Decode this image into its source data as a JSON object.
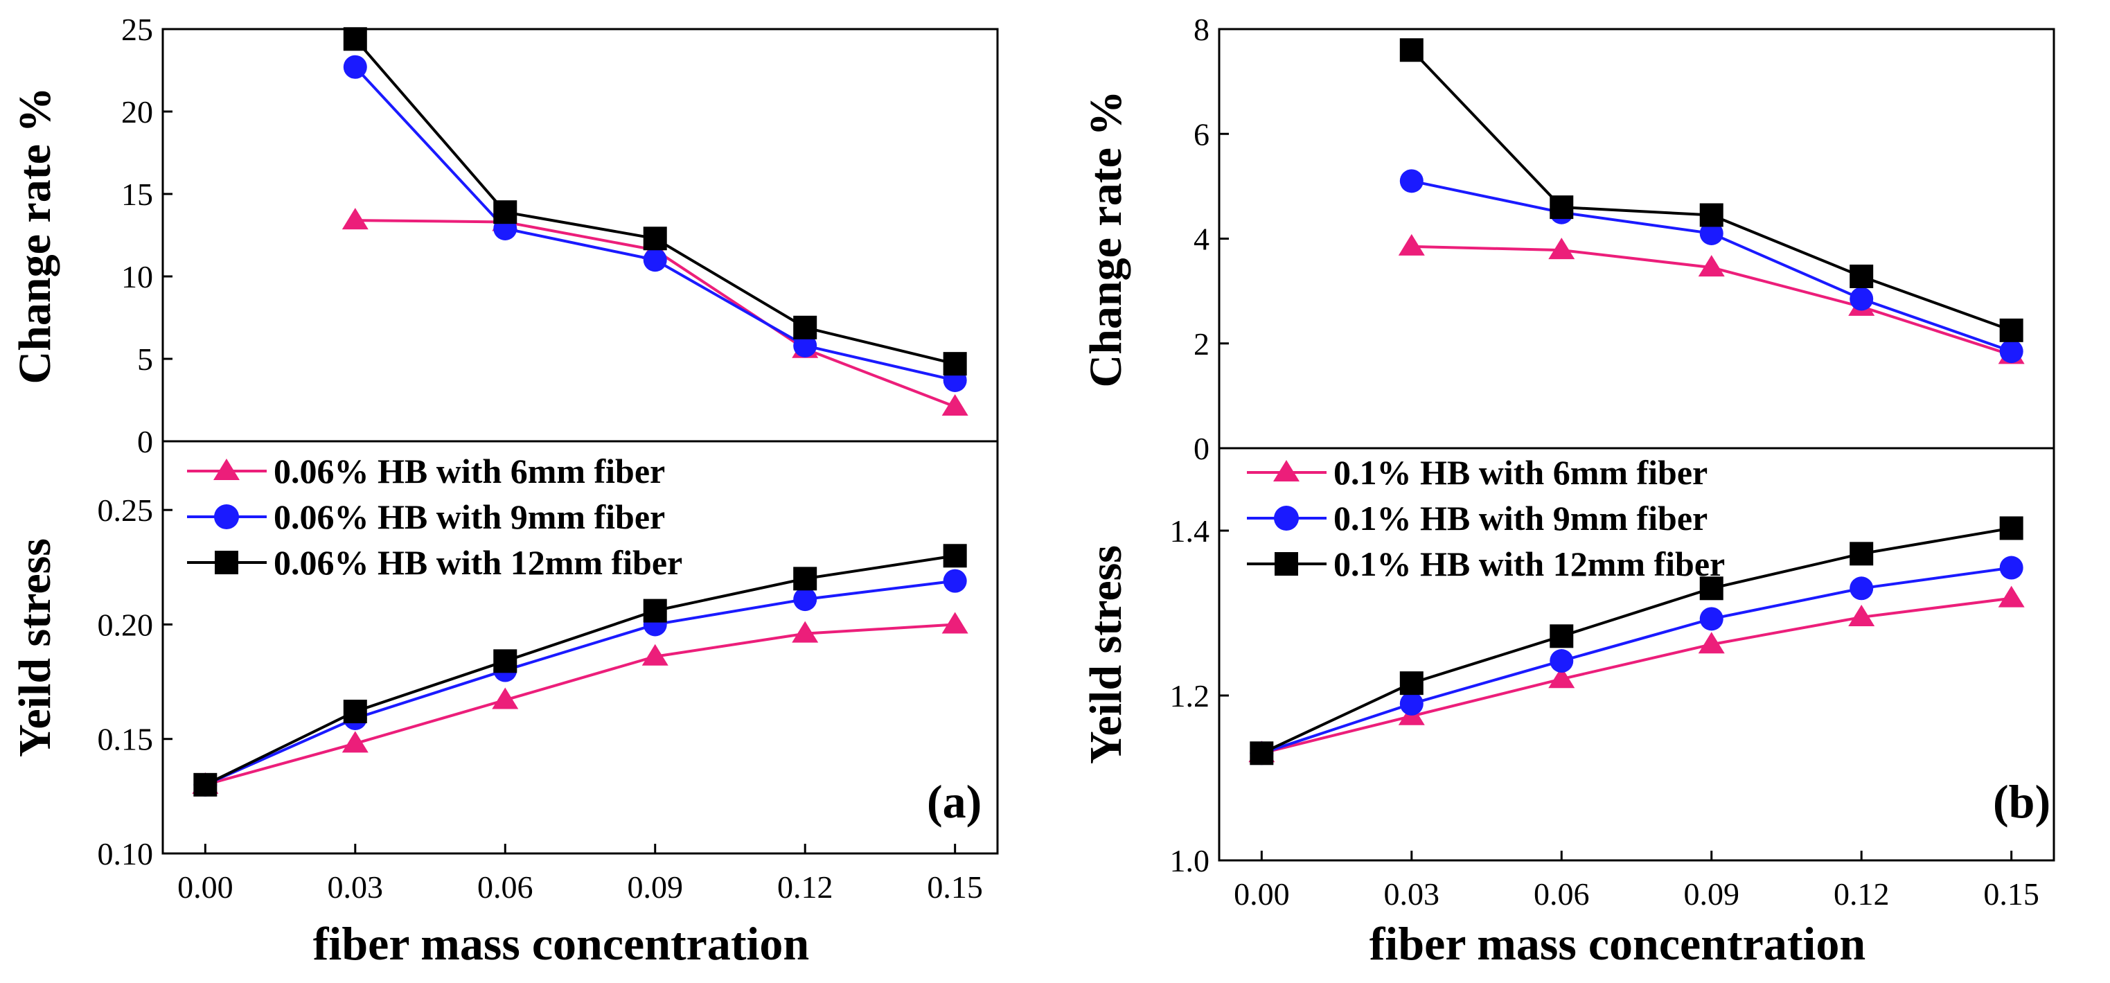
{
  "chart_data": [
    {
      "id": "a",
      "type": "line",
      "panel_label": "(a)",
      "xlabel": "fiber mass concentration",
      "x_ticks": [
        "0.00",
        "0.03",
        "0.06",
        "0.09",
        "0.12",
        "0.15"
      ],
      "xlim": [
        -0.0085,
        0.1585
      ],
      "top": {
        "ylabel": "Change rate %",
        "ylim": [
          0,
          25
        ],
        "y_ticks": [
          "0",
          "5",
          "10",
          "15",
          "20",
          "25"
        ],
        "series": [
          {
            "name": "0.06% HB with 6mm fiber",
            "color": "#ec1e7a",
            "marker": "triangle",
            "x": [
              0.03,
              0.06,
              0.09,
              0.12,
              0.15
            ],
            "values": [
              13.4,
              13.3,
              11.6,
              5.6,
              2.1
            ]
          },
          {
            "name": "0.06% HB with 9mm fiber",
            "color": "#1a1aff",
            "marker": "circle",
            "x": [
              0.03,
              0.06,
              0.09,
              0.12,
              0.15
            ],
            "values": [
              22.7,
              12.9,
              11.0,
              5.8,
              3.7
            ]
          },
          {
            "name": "0.06% HB with 12mm fiber",
            "color": "#000000",
            "marker": "square",
            "x": [
              0.03,
              0.06,
              0.09,
              0.12,
              0.15
            ],
            "values": [
              24.4,
              13.9,
              12.3,
              6.9,
              4.7
            ]
          }
        ]
      },
      "bottom": {
        "ylabel": "Yeild stress",
        "ylim": [
          0.1,
          0.28
        ],
        "y_ticks": [
          "0.10",
          "0.15",
          "0.20",
          "0.25"
        ],
        "legend": [
          "0.06% HB with 6mm fiber",
          "0.06% HB with 9mm fiber",
          "0.06% HB with 12mm fiber"
        ],
        "series": [
          {
            "name": "0.06% HB with 6mm fiber",
            "color": "#ec1e7a",
            "marker": "triangle",
            "x": [
              0.0,
              0.03,
              0.06,
              0.09,
              0.12,
              0.15
            ],
            "values": [
              0.13,
              0.148,
              0.167,
              0.186,
              0.196,
              0.2
            ]
          },
          {
            "name": "0.06% HB with 9mm fiber",
            "color": "#1a1aff",
            "marker": "circle",
            "x": [
              0.0,
              0.03,
              0.06,
              0.09,
              0.12,
              0.15
            ],
            "values": [
              0.13,
              0.159,
              0.18,
              0.2,
              0.211,
              0.219
            ]
          },
          {
            "name": "0.06% HB with 12mm fiber",
            "color": "#000000",
            "marker": "square",
            "x": [
              0.0,
              0.03,
              0.06,
              0.09,
              0.12,
              0.15
            ],
            "values": [
              0.13,
              0.162,
              0.184,
              0.206,
              0.22,
              0.23
            ]
          }
        ]
      }
    },
    {
      "id": "b",
      "type": "line",
      "panel_label": "(b)",
      "xlabel": "fiber mass concentration",
      "x_ticks": [
        "0.00",
        "0.03",
        "0.06",
        "0.09",
        "0.12",
        "0.15"
      ],
      "xlim": [
        -0.0085,
        0.1585
      ],
      "top": {
        "ylabel": "Change rate %",
        "ylim": [
          0,
          8
        ],
        "y_ticks": [
          "0",
          "2",
          "4",
          "6",
          "8"
        ],
        "series": [
          {
            "name": "0.1% HB with 6mm fiber",
            "color": "#ec1e7a",
            "marker": "triangle",
            "x": [
              0.03,
              0.06,
              0.09,
              0.12,
              0.15
            ],
            "values": [
              3.85,
              3.78,
              3.45,
              2.7,
              1.78
            ]
          },
          {
            "name": "0.1% HB with 9mm fiber",
            "color": "#1a1aff",
            "marker": "circle",
            "x": [
              0.03,
              0.06,
              0.09,
              0.12,
              0.15
            ],
            "values": [
              5.1,
              4.5,
              4.1,
              2.85,
              1.85
            ]
          },
          {
            "name": "0.1% HB with 12mm fiber",
            "color": "#000000",
            "marker": "square",
            "x": [
              0.03,
              0.06,
              0.09,
              0.12,
              0.15
            ],
            "values": [
              7.6,
              4.6,
              4.45,
              3.28,
              2.25
            ]
          }
        ]
      },
      "bottom": {
        "ylabel": "Yeild stress",
        "ylim": [
          1.0,
          1.5
        ],
        "y_ticks": [
          "1.0",
          "1.2",
          "1.4"
        ],
        "legend": [
          "0.1% HB with 6mm fiber",
          "0.1% HB with 9mm fiber",
          "0.1% HB with 12mm fiber"
        ],
        "series": [
          {
            "name": "0.1% HB with 6mm fiber",
            "color": "#ec1e7a",
            "marker": "triangle",
            "x": [
              0.0,
              0.03,
              0.06,
              0.09,
              0.12,
              0.15
            ],
            "values": [
              1.13,
              1.175,
              1.22,
              1.262,
              1.295,
              1.318
            ]
          },
          {
            "name": "0.1% HB with 9mm fiber",
            "color": "#1a1aff",
            "marker": "circle",
            "x": [
              0.0,
              0.03,
              0.06,
              0.09,
              0.12,
              0.15
            ],
            "values": [
              1.13,
              1.19,
              1.242,
              1.293,
              1.33,
              1.355
            ]
          },
          {
            "name": "0.1% HB with 12mm fiber",
            "color": "#000000",
            "marker": "square",
            "x": [
              0.0,
              0.03,
              0.06,
              0.09,
              0.12,
              0.15
            ],
            "values": [
              1.13,
              1.215,
              1.272,
              1.33,
              1.372,
              1.403
            ]
          }
        ]
      }
    }
  ]
}
